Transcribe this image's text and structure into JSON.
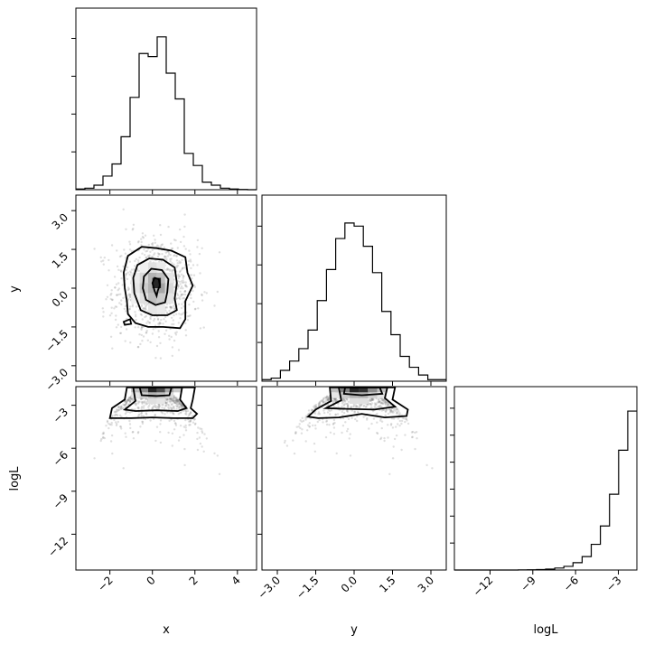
{
  "chart_data": {
    "type": "corner",
    "variables": [
      "x",
      "y",
      "logL"
    ],
    "ranges": {
      "x": [
        -3.6,
        4.9
      ],
      "y": [
        -3.6,
        3.6
      ],
      "logL": [
        -14.5,
        -1.7
      ]
    },
    "ticks": {
      "x": [
        {
          "value": -2,
          "label": "−2"
        },
        {
          "value": 0,
          "label": "0"
        },
        {
          "value": 2,
          "label": "2"
        },
        {
          "value": 4,
          "label": "4"
        }
      ],
      "y": [
        {
          "value": -3.0,
          "label": "−3.0"
        },
        {
          "value": -1.5,
          "label": "−1.5"
        },
        {
          "value": 0.0,
          "label": "0.0"
        },
        {
          "value": 1.5,
          "label": "1.5"
        },
        {
          "value": 3.0,
          "label": "3.0"
        }
      ],
      "logL": [
        {
          "value": -12,
          "label": "−12"
        },
        {
          "value": -9,
          "label": "−9"
        },
        {
          "value": -6,
          "label": "−6"
        },
        {
          "value": -3,
          "label": "−3"
        }
      ]
    },
    "hist_max": {
      "x": 1.2,
      "y": 1.2,
      "logL": 1.5
    },
    "hist_x": {
      "edges": [
        -3.6,
        -3.175,
        -2.75,
        -2.325,
        -1.9,
        -1.475,
        -1.05,
        -0.625,
        -0.2,
        0.225,
        0.65,
        1.075,
        1.5,
        1.925,
        2.35,
        2.775,
        3.2,
        3.625,
        4.05,
        4.475,
        4.9
      ],
      "counts": [
        0.005,
        0.01,
        0.03,
        0.09,
        0.17,
        0.35,
        0.61,
        0.9,
        0.88,
        1.01,
        0.77,
        0.6,
        0.24,
        0.16,
        0.05,
        0.03,
        0.01,
        0.005,
        0.002,
        0.0
      ]
    },
    "hist_y": {
      "edges": [
        -3.6,
        -3.24,
        -2.88,
        -2.52,
        -2.16,
        -1.8,
        -1.44,
        -1.08,
        -0.72,
        -0.36,
        0.0,
        0.36,
        0.72,
        1.08,
        1.44,
        1.8,
        2.16,
        2.52,
        2.88,
        3.24,
        3.6
      ],
      "counts": [
        0.01,
        0.02,
        0.07,
        0.13,
        0.21,
        0.33,
        0.52,
        0.72,
        0.92,
        1.02,
        1.0,
        0.87,
        0.7,
        0.45,
        0.3,
        0.16,
        0.09,
        0.04,
        0.01,
        0.01
      ]
    },
    "hist_logL": {
      "edges": [
        -14.5,
        -13.86,
        -13.22,
        -12.58,
        -11.94,
        -11.3,
        -10.66,
        -10.02,
        -9.38,
        -8.74,
        -8.1,
        -7.46,
        -6.82,
        -6.18,
        -5.54,
        -4.9,
        -4.26,
        -3.62,
        -2.98,
        -2.34,
        -1.7
      ],
      "counts": [
        0.0,
        0.0,
        0.0,
        0.0,
        0.0,
        0.0,
        0.0,
        0.001,
        0.002,
        0.004,
        0.008,
        0.016,
        0.03,
        0.06,
        0.11,
        0.21,
        0.36,
        0.62,
        0.98,
        1.3
      ]
    },
    "contours_xy": [
      {
        "level": 0.118,
        "points": [
          [
            -1.2,
            -0.5
          ],
          [
            -1.3,
            0.0
          ],
          [
            -1.35,
            0.6
          ],
          [
            -1.15,
            1.25
          ],
          [
            -0.5,
            1.6
          ],
          [
            0.2,
            1.55
          ],
          [
            0.9,
            1.45
          ],
          [
            1.55,
            1.2
          ],
          [
            1.65,
            0.6
          ],
          [
            1.9,
            0.1
          ],
          [
            1.55,
            -0.5
          ],
          [
            1.55,
            -1.2
          ],
          [
            1.3,
            -1.55
          ],
          [
            0.5,
            -1.5
          ],
          [
            -0.2,
            -1.5
          ],
          [
            -0.8,
            -1.35
          ],
          [
            -1.15,
            -1.0
          ]
        ]
      },
      {
        "level": 0.393,
        "points": [
          [
            -0.85,
            -0.2
          ],
          [
            -0.9,
            0.4
          ],
          [
            -0.7,
            0.9
          ],
          [
            -0.15,
            1.15
          ],
          [
            0.5,
            1.1
          ],
          [
            1.05,
            0.8
          ],
          [
            1.15,
            0.2
          ],
          [
            1.05,
            -0.4
          ],
          [
            1.15,
            -0.85
          ],
          [
            0.7,
            -1.05
          ],
          [
            0.0,
            -1.05
          ],
          [
            -0.55,
            -0.85
          ]
        ]
      },
      {
        "level": 0.675,
        "points": [
          [
            -0.45,
            0.0
          ],
          [
            -0.4,
            0.45
          ],
          [
            -0.05,
            0.75
          ],
          [
            0.45,
            0.7
          ],
          [
            0.75,
            0.35
          ],
          [
            0.7,
            -0.15
          ],
          [
            0.6,
            -0.55
          ],
          [
            0.15,
            -0.65
          ],
          [
            -0.3,
            -0.45
          ]
        ]
      },
      {
        "level": 0.865,
        "points": [
          [
            0.0,
            0.2
          ],
          [
            0.1,
            0.4
          ],
          [
            0.3,
            0.35
          ],
          [
            0.35,
            0.1
          ],
          [
            0.25,
            -0.1
          ],
          [
            0.2,
            -0.3
          ],
          [
            0.1,
            -0.1
          ]
        ]
      },
      {
        "level": 0.118,
        "points": [
          [
            -1.35,
            -1.3
          ],
          [
            -1.05,
            -1.2
          ],
          [
            -1.0,
            -1.38
          ],
          [
            -1.3,
            -1.42
          ]
        ]
      }
    ],
    "contours_x_logL": [
      {
        "level": 0.118,
        "points": [
          [
            -2.0,
            -3.9
          ],
          [
            -1.9,
            -3.2
          ],
          [
            -1.3,
            -2.6
          ],
          [
            -1.2,
            -1.75
          ],
          [
            2.0,
            -1.75
          ],
          [
            1.9,
            -2.6
          ],
          [
            1.8,
            -3.2
          ],
          [
            2.1,
            -3.6
          ],
          [
            1.9,
            -3.9
          ],
          [
            1.0,
            -3.9
          ],
          [
            0.0,
            -3.85
          ],
          [
            -1.0,
            -3.9
          ]
        ]
      },
      {
        "level": 0.393,
        "points": [
          [
            -1.3,
            -3.3
          ],
          [
            -0.8,
            -2.7
          ],
          [
            -0.9,
            -1.75
          ],
          [
            1.4,
            -1.75
          ],
          [
            1.3,
            -2.6
          ],
          [
            1.6,
            -3.2
          ],
          [
            1.2,
            -3.4
          ],
          [
            0.2,
            -3.35
          ],
          [
            -0.8,
            -3.4
          ]
        ]
      },
      {
        "level": 0.675,
        "points": [
          [
            -0.5,
            -2.3
          ],
          [
            -0.6,
            -1.75
          ],
          [
            0.9,
            -1.75
          ],
          [
            0.8,
            -2.3
          ],
          [
            0.2,
            -2.35
          ]
        ]
      }
    ],
    "contours_y_logL": [
      {
        "level": 0.118,
        "points": [
          [
            -1.8,
            -3.8
          ],
          [
            -1.5,
            -3.3
          ],
          [
            -0.9,
            -2.7
          ],
          [
            -0.95,
            -1.75
          ],
          [
            1.6,
            -1.75
          ],
          [
            1.5,
            -2.6
          ],
          [
            2.1,
            -3.3
          ],
          [
            2.05,
            -3.75
          ],
          [
            1.2,
            -3.85
          ],
          [
            0.3,
            -3.6
          ],
          [
            -0.6,
            -3.85
          ],
          [
            -1.4,
            -3.9
          ]
        ]
      },
      {
        "level": 0.393,
        "points": [
          [
            -1.1,
            -3.2
          ],
          [
            -0.5,
            -2.65
          ],
          [
            -0.6,
            -1.75
          ],
          [
            1.3,
            -1.75
          ],
          [
            1.2,
            -2.5
          ],
          [
            1.6,
            -3.1
          ],
          [
            0.8,
            -3.3
          ],
          [
            -0.3,
            -3.25
          ]
        ]
      },
      {
        "level": 0.675,
        "points": [
          [
            -0.4,
            -2.2
          ],
          [
            -0.35,
            -1.75
          ],
          [
            1.0,
            -1.75
          ],
          [
            1.1,
            -2.2
          ],
          [
            0.3,
            -2.3
          ]
        ]
      }
    ],
    "density_cells_xy": [
      [
        0.0,
        0.0,
        0.3
      ],
      [
        0.4,
        0.0,
        0.35
      ],
      [
        0.0,
        0.4,
        0.3
      ],
      [
        0.4,
        0.4,
        0.25
      ],
      [
        -0.4,
        0.0,
        0.2
      ],
      [
        0.0,
        -0.4,
        0.25
      ],
      [
        0.4,
        -0.4,
        0.2
      ],
      [
        -0.4,
        0.4,
        0.15
      ],
      [
        0.8,
        0.0,
        0.15
      ],
      [
        0.0,
        0.8,
        0.12
      ],
      [
        -0.4,
        -0.4,
        0.12
      ],
      [
        0.8,
        0.4,
        0.1
      ],
      [
        0.8,
        -0.4,
        0.1
      ],
      [
        -0.8,
        0.0,
        0.1
      ],
      [
        0.0,
        -0.8,
        0.1
      ],
      [
        -0.8,
        0.4,
        0.08
      ],
      [
        0.4,
        0.8,
        0.08
      ],
      [
        -0.4,
        0.8,
        0.06
      ],
      [
        0.4,
        -0.8,
        0.08
      ],
      [
        -0.8,
        -0.4,
        0.06
      ],
      [
        0.2,
        0.2,
        0.85
      ]
    ],
    "density_cells_x_logL": [
      [
        0.0,
        -1.9,
        0.85
      ],
      [
        0.4,
        -1.9,
        0.7
      ],
      [
        -0.4,
        -1.9,
        0.45
      ],
      [
        0.8,
        -1.9,
        0.35
      ],
      [
        -0.8,
        -1.9,
        0.25
      ],
      [
        1.2,
        -1.9,
        0.2
      ],
      [
        0.0,
        -2.3,
        0.3
      ],
      [
        0.4,
        -2.3,
        0.25
      ],
      [
        -0.4,
        -2.3,
        0.18
      ],
      [
        0.8,
        -2.3,
        0.15
      ],
      [
        -0.8,
        -2.3,
        0.1
      ],
      [
        0.0,
        -2.7,
        0.12
      ],
      [
        0.4,
        -2.7,
        0.1
      ]
    ],
    "density_cells_y_logL": [
      [
        0.0,
        -1.9,
        0.85
      ],
      [
        0.36,
        -1.9,
        0.8
      ],
      [
        -0.36,
        -1.9,
        0.5
      ],
      [
        0.72,
        -1.9,
        0.45
      ],
      [
        -0.72,
        -1.9,
        0.25
      ],
      [
        1.08,
        -1.9,
        0.25
      ],
      [
        0.0,
        -2.3,
        0.3
      ],
      [
        0.36,
        -2.3,
        0.3
      ],
      [
        -0.36,
        -2.3,
        0.2
      ],
      [
        0.72,
        -2.3,
        0.18
      ],
      [
        -0.72,
        -2.3,
        0.1
      ],
      [
        1.08,
        -2.3,
        0.1
      ],
      [
        0.0,
        -2.7,
        0.12
      ],
      [
        0.36,
        -2.7,
        0.12
      ]
    ]
  }
}
